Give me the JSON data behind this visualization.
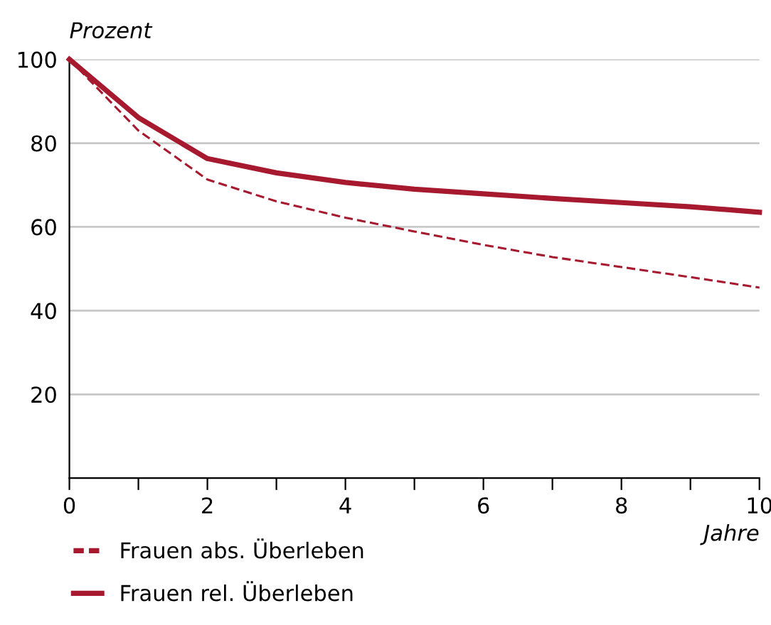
{
  "chart_data": {
    "type": "line",
    "ylabel": "Prozent",
    "xlabel": "Jahre",
    "x": [
      0,
      1,
      2,
      3,
      4,
      5,
      6,
      7,
      8,
      9,
      10
    ],
    "series": [
      {
        "name": "Frauen abs. Überleben",
        "color": "#a6192e",
        "line_style": "dashed",
        "values": [
          100,
          83,
          71.3,
          66.1,
          62.2,
          58.9,
          55.7,
          52.8,
          50.4,
          48,
          45.5
        ]
      },
      {
        "name": "Frauen rel. Überleben",
        "color": "#a6192e",
        "line_style": "solid",
        "values": [
          100,
          86.1,
          76.3,
          72.9,
          70.6,
          69,
          67.9,
          66.8,
          65.8,
          64.8,
          63.5
        ]
      }
    ],
    "xlim": [
      0,
      10
    ],
    "ylim": [
      0,
      100
    ],
    "xticks": [
      0,
      {
        "value": 1,
        "label": null
      },
      2,
      {
        "value": 3,
        "label": null
      },
      4,
      {
        "value": 5,
        "label": null
      },
      6,
      {
        "value": 7,
        "label": null
      },
      8,
      {
        "value": 9,
        "label": null
      },
      10
    ],
    "yticks": [
      20,
      40,
      60,
      80,
      100
    ],
    "grid": "y",
    "legend": "bottom left"
  }
}
